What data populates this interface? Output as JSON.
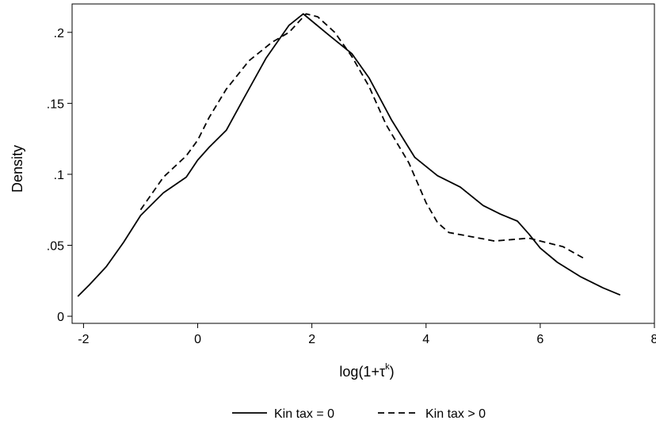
{
  "chart_data": {
    "type": "line",
    "title": "",
    "xlabel_main": "log(1+τ",
    "xlabel_sup": "k",
    "xlabel_close": ")",
    "ylabel": "Density",
    "xlim": [
      -2.2,
      8
    ],
    "ylim": [
      -0.005,
      0.22
    ],
    "xticks": [
      -2,
      0,
      2,
      4,
      6,
      8
    ],
    "xtick_labels": [
      "-2",
      "0",
      "2",
      "4",
      "6",
      "8"
    ],
    "yticks": [
      0,
      0.05,
      0.1,
      0.15,
      0.2
    ],
    "ytick_labels": [
      "0",
      ".05",
      ".1",
      ".15",
      ".2"
    ],
    "grid": false,
    "legend_position": "bottom",
    "series": [
      {
        "name": "Kin tax = 0",
        "dash": "solid",
        "color": "#000000",
        "x": [
          -2.1,
          -1.9,
          -1.6,
          -1.3,
          -1.0,
          -0.6,
          -0.2,
          0.0,
          0.2,
          0.5,
          0.8,
          1.2,
          1.6,
          1.85,
          2.0,
          2.3,
          2.7,
          3.0,
          3.4,
          3.8,
          4.2,
          4.6,
          5.0,
          5.3,
          5.6,
          5.8,
          6.0,
          6.3,
          6.7,
          7.1,
          7.4
        ],
        "y": [
          0.014,
          0.022,
          0.035,
          0.052,
          0.071,
          0.087,
          0.098,
          0.11,
          0.119,
          0.131,
          0.153,
          0.182,
          0.205,
          0.213,
          0.208,
          0.198,
          0.185,
          0.168,
          0.138,
          0.112,
          0.099,
          0.091,
          0.078,
          0.072,
          0.067,
          0.058,
          0.048,
          0.038,
          0.028,
          0.02,
          0.015
        ]
      },
      {
        "name": "Kin tax > 0",
        "dash": "dashed",
        "color": "#000000",
        "x": [
          -1.0,
          -0.6,
          -0.2,
          0.0,
          0.2,
          0.5,
          0.9,
          1.3,
          1.6,
          1.9,
          2.1,
          2.4,
          2.7,
          3.0,
          3.3,
          3.7,
          4.0,
          4.2,
          4.4,
          4.8,
          5.2,
          5.5,
          5.8,
          6.1,
          6.4,
          6.8
        ],
        "y": [
          0.075,
          0.098,
          0.113,
          0.124,
          0.14,
          0.16,
          0.18,
          0.193,
          0.2,
          0.213,
          0.211,
          0.2,
          0.183,
          0.162,
          0.135,
          0.108,
          0.08,
          0.066,
          0.059,
          0.056,
          0.053,
          0.054,
          0.055,
          0.052,
          0.049,
          0.04
        ]
      }
    ]
  }
}
